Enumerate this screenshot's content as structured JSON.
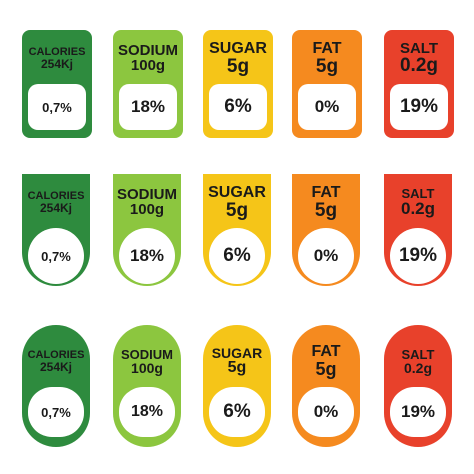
{
  "colors": {
    "dark_green": "#2e8b3e",
    "light_green": "#8cc63f",
    "yellow": "#f5c518",
    "orange": "#f58a1f",
    "red": "#e8412b"
  },
  "labels": [
    {
      "name": "CALORIES",
      "amount": "254Kj",
      "value": "0,7%"
    },
    {
      "name": "SODIUM",
      "amount": "100g",
      "value": "18%"
    },
    {
      "name": "SUGAR",
      "amount": "5g",
      "value": "6%"
    },
    {
      "name": "FAT",
      "amount": "5g",
      "value": "0%"
    },
    {
      "name": "SALT",
      "amount": "0.2g",
      "value": "19%"
    }
  ]
}
